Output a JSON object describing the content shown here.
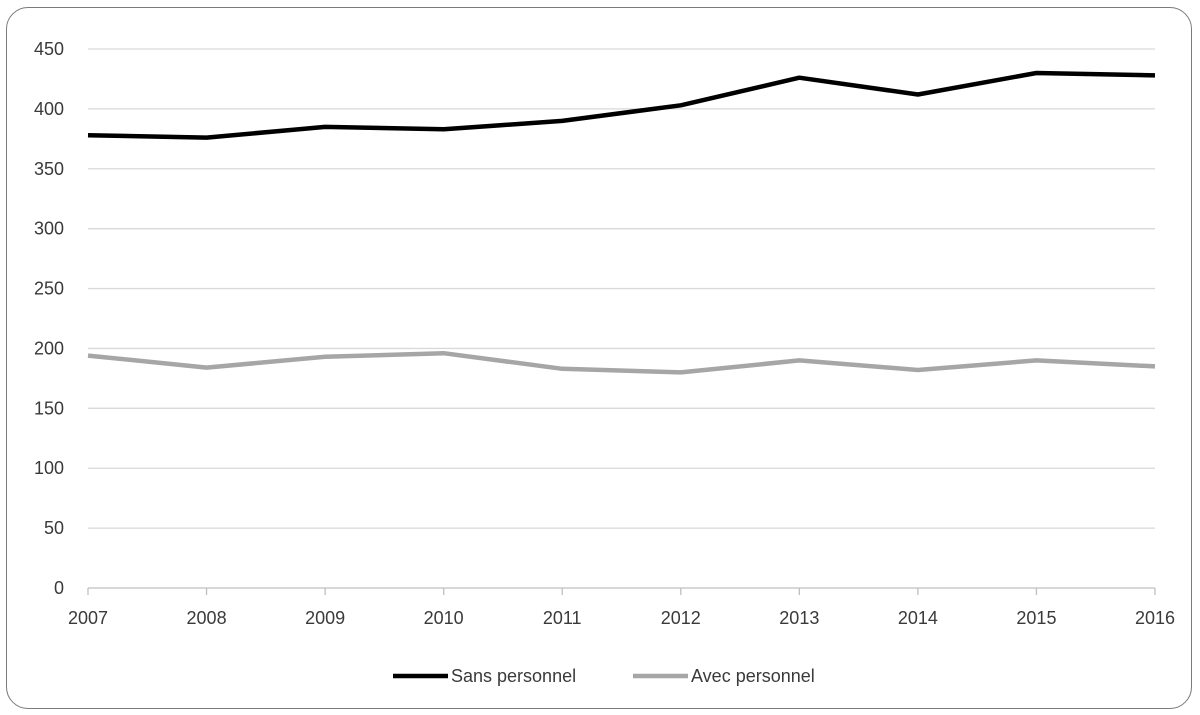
{
  "chart_data": {
    "type": "line",
    "title": "",
    "xlabel": "",
    "ylabel": "",
    "categories": [
      "2007",
      "2008",
      "2009",
      "2010",
      "2011",
      "2012",
      "2013",
      "2014",
      "2015",
      "2016"
    ],
    "ylim": [
      0,
      450
    ],
    "yticks": [
      0,
      50,
      100,
      150,
      200,
      250,
      300,
      350,
      400,
      450
    ],
    "grid": true,
    "legend_position": "bottom",
    "series": [
      {
        "name": "Sans personnel",
        "color": "#000000",
        "values": [
          378,
          376,
          385,
          383,
          390,
          403,
          426,
          412,
          430,
          428
        ]
      },
      {
        "name": "Avec personnel",
        "color": "#a6a6a6",
        "values": [
          194,
          184,
          193,
          196,
          183,
          180,
          190,
          182,
          190,
          185
        ]
      }
    ]
  }
}
